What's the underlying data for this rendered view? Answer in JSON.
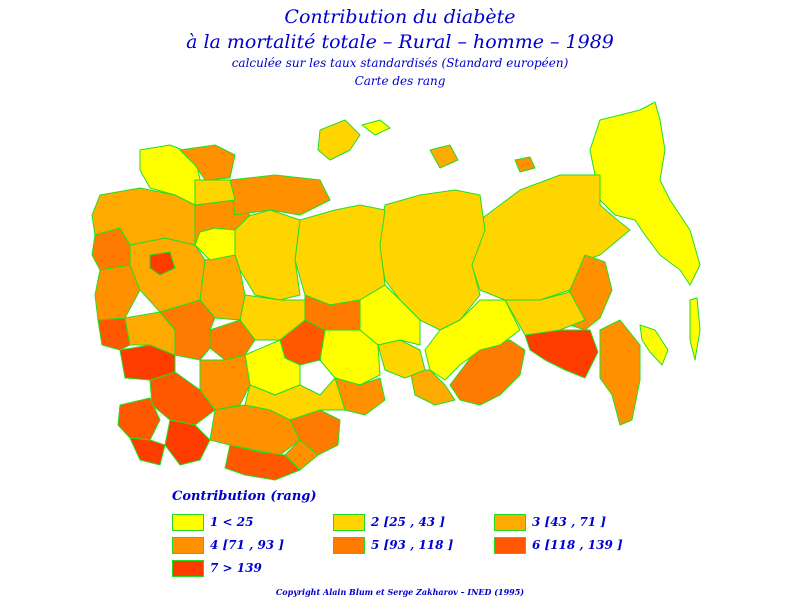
{
  "header": {
    "title_line1": "Contribution du diabète",
    "title_line2": "à la mortalité totale  –  Rural  –  homme  –  1989",
    "subtitle_line1": "calculée sur les taux standardisés (Standard européen)",
    "subtitle_line2": "Carte des rang"
  },
  "legend": {
    "title": "Contribution  (rang)",
    "items": [
      {
        "label": "1  <  25",
        "color": "#ffff00"
      },
      {
        "label": "2  [25  ,  43  ]",
        "color": "#ffd500"
      },
      {
        "label": "3  [43  ,  71  ]",
        "color": "#ffaa00"
      },
      {
        "label": "4  [71  ,  93  ]",
        "color": "#ff9000"
      },
      {
        "label": "5  [93  ,  118  ]",
        "color": "#ff7a00"
      },
      {
        "label": "6  [118  ,  139  ]",
        "color": "#ff5800"
      },
      {
        "label": "7  >  139",
        "color": "#ff3c00"
      }
    ]
  },
  "map": {
    "border_color": "#22dd22"
  },
  "footer": {
    "copyright": "Copyright  Alain  Blum  et  Serge  Zakharov  –  INED (1995)"
  }
}
